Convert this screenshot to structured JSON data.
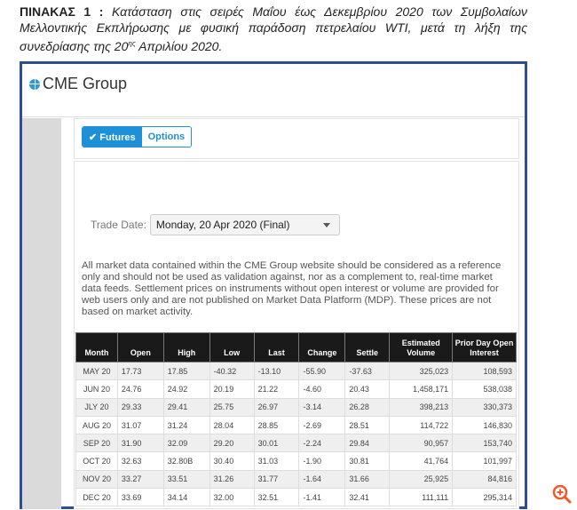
{
  "caption": {
    "label": "ΠΙΝΑΚΑΣ 1 :",
    "text_a": "Κατάσταση στις σειρές Μαΐου έως Δεκεμβρίου 2020 των Συμβολαίων Μελλοντικής Εκπλήρωσης με φυσική παράδοση πετρελαίου WTI, μετά τη λήξη της συνεδρίασης της 20",
    "sup": "ης",
    "text_b": " Απριλίου 2020."
  },
  "header": {
    "logo": "CME Group"
  },
  "tabs": [
    {
      "label": "Futures",
      "active": true
    },
    {
      "label": "Options",
      "active": false
    }
  ],
  "trade_date": {
    "label": "Trade Date:",
    "value": "Monday, 20 Apr 2020 (Final)"
  },
  "disclaimer": "All market data contained within the CME Group website should be considered as a reference only and should not be used as validation against, nor as a complement to, real-time market data feeds. Settlement prices on instruments without open interest or volume are provided for web users only and are not published on Market Data Platform (MDP). These prices are not based on market activity.",
  "table": {
    "headers": [
      "Month",
      "Open",
      "High",
      "Low",
      "Last",
      "Change",
      "Settle",
      "Estimated Volume",
      "Prior Day Open Interest"
    ],
    "rows": [
      [
        "MAY 20",
        "17.73",
        "17.85",
        "-40.32",
        "-13.10",
        "-55.90",
        "-37.63",
        "325,023",
        "108,593"
      ],
      [
        "JUN 20",
        "24.76",
        "24.92",
        "20.19",
        "21.22",
        "-4.60",
        "20.43",
        "1,458,171",
        "538,038"
      ],
      [
        "JLY 20",
        "29.33",
        "29.41",
        "25.75",
        "26.97",
        "-3.14",
        "26.28",
        "398,213",
        "330,373"
      ],
      [
        "AUG 20",
        "31.07",
        "31.24",
        "28.04",
        "28.85",
        "-2.69",
        "28.51",
        "114,722",
        "146,830"
      ],
      [
        "SEP 20",
        "31.90",
        "32.09",
        "29.20",
        "30.01",
        "-2.24",
        "29.84",
        "90,957",
        "153,740"
      ],
      [
        "OCT 20",
        "32.63",
        "32.80B",
        "30.40",
        "31.03",
        "-1.90",
        "30.81",
        "41,764",
        "101,997"
      ],
      [
        "NOV 20",
        "33.27",
        "33.51",
        "31.26",
        "31.77",
        "-1.64",
        "31.66",
        "25,925",
        "84,816"
      ],
      [
        "DEC 20",
        "33.69",
        "34.14",
        "32.00",
        "32.51",
        "-1.41",
        "32.41",
        "111,111",
        "295,314"
      ]
    ]
  },
  "icons": {
    "zoom": "zoom-in-icon",
    "logo": "globe-icon",
    "tab": "check-circle-icon"
  },
  "colors": {
    "frame": "#2c4f94",
    "accent": "#1e90d8",
    "zoom": "#f05a28"
  }
}
